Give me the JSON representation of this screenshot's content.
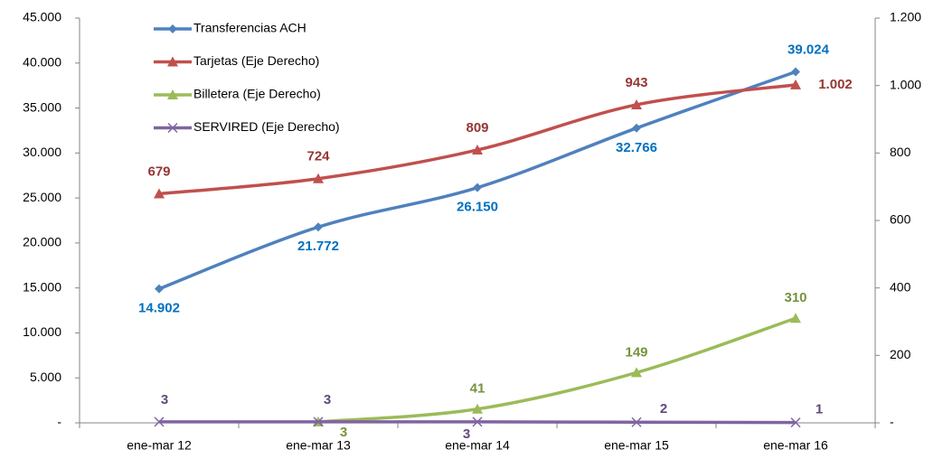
{
  "chart_data": {
    "type": "line",
    "categories": [
      "ene-mar 12",
      "ene-mar 13",
      "ene-mar 14",
      "ene-mar 15",
      "ene-mar 16"
    ],
    "series": [
      {
        "name": "Transferencias ACH",
        "color": "#4f81bd",
        "label_color": "#0070c0",
        "marker": "diamond",
        "values": [
          14902,
          21772,
          26150,
          32766,
          39024
        ],
        "value_labels": [
          "14.902",
          "21.772",
          "26.150",
          "32.766",
          "39.024"
        ]
      },
      {
        "name": "Tarjetas (Eje Derecho)",
        "color": "#c0504d",
        "label_color": "#953735",
        "marker": "triangle",
        "axis": "y2",
        "values": [
          679,
          724,
          809,
          943,
          1002
        ],
        "value_labels": [
          "679",
          "724",
          "809",
          "943",
          "1.002"
        ]
      },
      {
        "name": "Billetera (Eje Derecho)",
        "color": "#9bbb59",
        "label_color": "#76923c",
        "marker": "triangle",
        "axis": "y2",
        "values": [
          null,
          3,
          41,
          149,
          310
        ],
        "value_labels": [
          null,
          "3",
          "41",
          "149",
          "310"
        ]
      },
      {
        "name": "SERVIRED (Eje Derecho)",
        "color": "#8064a2",
        "label_color": "#604a7b",
        "marker": "x",
        "axis": "y2",
        "values": [
          3,
          3,
          3,
          2,
          1
        ],
        "value_labels": [
          "3",
          "3",
          "3",
          "2",
          "1"
        ]
      }
    ],
    "ylim": [
      0,
      45000
    ],
    "yticks": [
      {
        "value": 0,
        "label": "-"
      },
      {
        "value": 5000,
        "label": "5.000"
      },
      {
        "value": 10000,
        "label": "10.000"
      },
      {
        "value": 15000,
        "label": "15.000"
      },
      {
        "value": 20000,
        "label": "20.000"
      },
      {
        "value": 25000,
        "label": "25.000"
      },
      {
        "value": 30000,
        "label": "30.000"
      },
      {
        "value": 35000,
        "label": "35.000"
      },
      {
        "value": 40000,
        "label": "40.000"
      },
      {
        "value": 45000,
        "label": "45.000"
      }
    ],
    "y2lim": [
      0,
      1200
    ],
    "y2ticks": [
      {
        "value": 0,
        "label": "-"
      },
      200,
      400,
      600,
      800,
      {
        "value": 1000,
        "label": "1.000"
      },
      {
        "value": 1200,
        "label": "1.200"
      }
    ],
    "grid": false,
    "legend": "top-left",
    "smooth": true
  }
}
